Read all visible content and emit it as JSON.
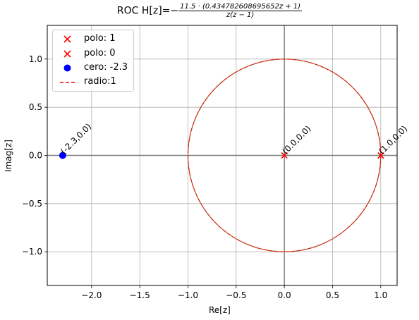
{
  "title": {
    "prefix": "ROC H[z]=−",
    "numerator": "11.5 · (0.434782608695652z + 1)",
    "denominator": "z(z − 1)"
  },
  "chart_data": {
    "type": "scatter",
    "xlabel": "Re[z]",
    "ylabel": "Imag[z]",
    "xlim": [
      -2.46,
      1.17
    ],
    "ylim": [
      -1.35,
      1.35
    ],
    "x_ticks": [
      -2.0,
      -1.5,
      -1.0,
      -0.5,
      0.0,
      0.5,
      1.0
    ],
    "x_tick_labels": [
      "−2.0",
      "−1.5",
      "−1.0",
      "−0.5",
      "0.0",
      "0.5",
      "1.0"
    ],
    "y_ticks": [
      1.0,
      0.5,
      0.0,
      -0.5,
      -1.0
    ],
    "y_tick_labels": [
      "1.0",
      "0.5",
      "0.0",
      "−0.5",
      "−1.0"
    ],
    "grid": true,
    "legend_position": "top-left",
    "series": [
      {
        "name": "polo: 1",
        "marker": "x",
        "color": "#ff0000",
        "points": [
          [
            1.0,
            0.0
          ]
        ]
      },
      {
        "name": "polo: 0",
        "marker": "x",
        "color": "#ff0000",
        "points": [
          [
            0.0,
            0.0
          ]
        ]
      },
      {
        "name": "cero: -2.3",
        "marker": "o",
        "color": "#0000ff",
        "points": [
          [
            -2.3,
            0.0
          ]
        ]
      },
      {
        "name": "radio:1",
        "marker": "dashed-line",
        "color": "#ff0000",
        "radius": 1
      }
    ],
    "point_annotations": [
      {
        "x": -2.3,
        "y": 0.0,
        "text": "(-2.3,0.0)"
      },
      {
        "x": 0.0,
        "y": 0.0,
        "text": "(0.0,0.0)"
      },
      {
        "x": 1.0,
        "y": 0.0,
        "text": "(1.0,0.0)"
      }
    ],
    "axis_line_color": "#808080",
    "grid_color": "#b0b0b0",
    "circle_color": "#a05a2c"
  }
}
